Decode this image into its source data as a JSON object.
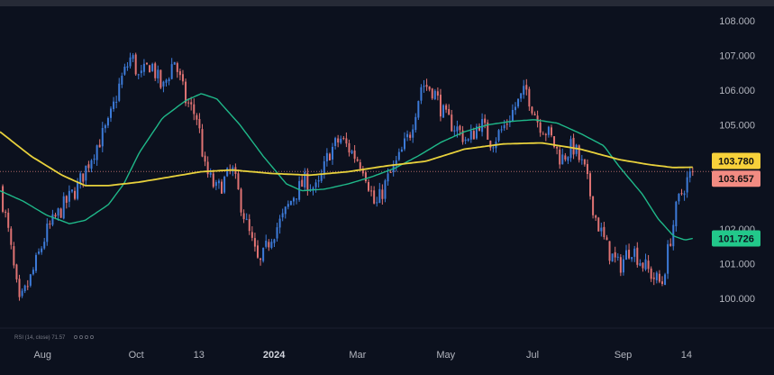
{
  "chart_data": {
    "type": "candlestick",
    "y_range": [
      99.55,
      108.25
    ],
    "price_ticks": [
      "108.000",
      "107.000",
      "106.000",
      "105.000",
      "102.000",
      "101.000",
      "100.000"
    ],
    "date_ticks": [
      {
        "label": "Aug",
        "bold": false,
        "x": 0.055
      },
      {
        "label": "Oct",
        "bold": false,
        "x": 0.176
      },
      {
        "label": "13",
        "bold": false,
        "x": 0.257
      },
      {
        "label": "2024",
        "bold": true,
        "x": 0.354
      },
      {
        "label": "Mar",
        "bold": false,
        "x": 0.462
      },
      {
        "label": "May",
        "bold": false,
        "x": 0.576
      },
      {
        "label": "Jul",
        "bold": false,
        "x": 0.688
      },
      {
        "label": "Sep",
        "bold": false,
        "x": 0.805
      },
      {
        "label": "14",
        "bold": false,
        "x": 0.887
      }
    ],
    "indicator_label": "RSI (14, close)  71.57",
    "last_price": {
      "value": 103.657,
      "label": "103.657",
      "color": "#f28b82"
    },
    "sma_slow_last": {
      "value": 103.78,
      "label": "103.780",
      "color": "#f7d13a"
    },
    "sma_fast_last": {
      "value": 101.726,
      "label": "101.726",
      "color": "#22c88a"
    },
    "colors": {
      "up": "#3d7bd9",
      "down": "#e07373",
      "yellow_line": "#e8d13c",
      "green_line": "#1fb889"
    },
    "price_path": [
      [
        0.0,
        103.2
      ],
      [
        0.01,
        102.0
      ],
      [
        0.025,
        99.8
      ],
      [
        0.04,
        100.6
      ],
      [
        0.06,
        101.9
      ],
      [
        0.08,
        102.6
      ],
      [
        0.1,
        103.2
      ],
      [
        0.12,
        104.2
      ],
      [
        0.14,
        105.0
      ],
      [
        0.155,
        106.2
      ],
      [
        0.17,
        107.0
      ],
      [
        0.18,
        106.3
      ],
      [
        0.195,
        106.8
      ],
      [
        0.21,
        106.0
      ],
      [
        0.225,
        106.9
      ],
      [
        0.24,
        105.7
      ],
      [
        0.255,
        105.2
      ],
      [
        0.265,
        103.7
      ],
      [
        0.28,
        103.1
      ],
      [
        0.3,
        103.7
      ],
      [
        0.32,
        102.0
      ],
      [
        0.335,
        100.9
      ],
      [
        0.35,
        101.8
      ],
      [
        0.365,
        102.3
      ],
      [
        0.38,
        103.0
      ],
      [
        0.395,
        103.4
      ],
      [
        0.41,
        103.1
      ],
      [
        0.425,
        104.2
      ],
      [
        0.44,
        104.6
      ],
      [
        0.455,
        104.2
      ],
      [
        0.47,
        103.8
      ],
      [
        0.485,
        102.6
      ],
      [
        0.5,
        103.4
      ],
      [
        0.515,
        104.0
      ],
      [
        0.53,
        104.8
      ],
      [
        0.545,
        106.2
      ],
      [
        0.56,
        106.0
      ],
      [
        0.575,
        105.2
      ],
      [
        0.59,
        104.9
      ],
      [
        0.605,
        104.5
      ],
      [
        0.62,
        105.1
      ],
      [
        0.635,
        104.5
      ],
      [
        0.65,
        104.9
      ],
      [
        0.665,
        105.5
      ],
      [
        0.68,
        106.0
      ],
      [
        0.695,
        105.1
      ],
      [
        0.71,
        104.7
      ],
      [
        0.725,
        104.0
      ],
      [
        0.74,
        104.4
      ],
      [
        0.755,
        103.7
      ],
      [
        0.77,
        102.3
      ],
      [
        0.785,
        101.4
      ],
      [
        0.8,
        100.9
      ],
      [
        0.815,
        101.5
      ],
      [
        0.83,
        101.0
      ],
      [
        0.845,
        100.6
      ],
      [
        0.855,
        100.4
      ],
      [
        0.865,
        101.6
      ],
      [
        0.875,
        102.7
      ],
      [
        0.885,
        103.3
      ],
      [
        0.895,
        103.657
      ]
    ],
    "yellow_line": [
      [
        0.0,
        104.8
      ],
      [
        0.04,
        104.1
      ],
      [
        0.08,
        103.55
      ],
      [
        0.11,
        103.25
      ],
      [
        0.14,
        103.25
      ],
      [
        0.18,
        103.35
      ],
      [
        0.22,
        103.5
      ],
      [
        0.26,
        103.65
      ],
      [
        0.3,
        103.7
      ],
      [
        0.35,
        103.6
      ],
      [
        0.4,
        103.55
      ],
      [
        0.45,
        103.65
      ],
      [
        0.5,
        103.82
      ],
      [
        0.55,
        103.95
      ],
      [
        0.6,
        104.3
      ],
      [
        0.65,
        104.45
      ],
      [
        0.7,
        104.48
      ],
      [
        0.75,
        104.3
      ],
      [
        0.8,
        104.0
      ],
      [
        0.84,
        103.85
      ],
      [
        0.87,
        103.77
      ],
      [
        0.895,
        103.78
      ]
    ],
    "green_line": [
      [
        0.0,
        103.1
      ],
      [
        0.03,
        102.8
      ],
      [
        0.06,
        102.4
      ],
      [
        0.09,
        102.15
      ],
      [
        0.11,
        102.25
      ],
      [
        0.14,
        102.7
      ],
      [
        0.16,
        103.3
      ],
      [
        0.18,
        104.2
      ],
      [
        0.21,
        105.2
      ],
      [
        0.24,
        105.7
      ],
      [
        0.26,
        105.9
      ],
      [
        0.28,
        105.75
      ],
      [
        0.31,
        105.0
      ],
      [
        0.34,
        104.1
      ],
      [
        0.37,
        103.3
      ],
      [
        0.39,
        103.1
      ],
      [
        0.42,
        103.15
      ],
      [
        0.45,
        103.3
      ],
      [
        0.48,
        103.5
      ],
      [
        0.51,
        103.75
      ],
      [
        0.54,
        104.1
      ],
      [
        0.57,
        104.5
      ],
      [
        0.6,
        104.8
      ],
      [
        0.63,
        105.0
      ],
      [
        0.66,
        105.1
      ],
      [
        0.69,
        105.15
      ],
      [
        0.72,
        105.05
      ],
      [
        0.75,
        104.75
      ],
      [
        0.78,
        104.4
      ],
      [
        0.8,
        103.8
      ],
      [
        0.83,
        103.0
      ],
      [
        0.85,
        102.3
      ],
      [
        0.87,
        101.8
      ],
      [
        0.885,
        101.68
      ],
      [
        0.895,
        101.726
      ]
    ]
  }
}
